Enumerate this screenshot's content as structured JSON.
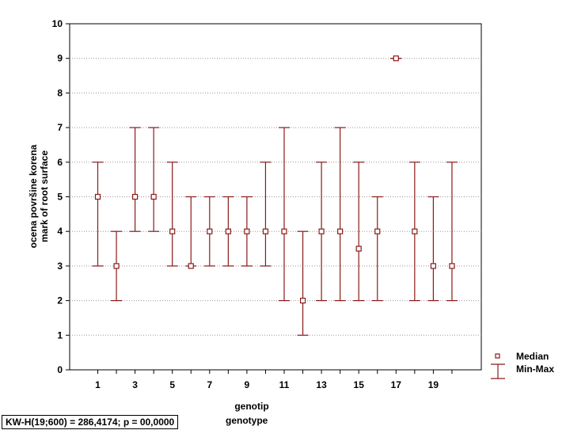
{
  "chart_data": {
    "type": "errorbar",
    "categories": [
      "1",
      "2",
      "3",
      "4",
      "5",
      "6",
      "7",
      "8",
      "9",
      "10",
      "11",
      "12",
      "13",
      "14",
      "15",
      "16",
      "17",
      "18",
      "19",
      "20"
    ],
    "x_tick_labels": [
      "1",
      "3",
      "5",
      "7",
      "9",
      "11",
      "13",
      "15",
      "17",
      "19"
    ],
    "median": [
      5,
      3,
      5,
      5,
      4,
      3,
      4,
      4,
      4,
      4,
      4,
      2,
      4,
      4,
      3.5,
      4,
      9,
      4,
      3,
      3
    ],
    "min": [
      3,
      2,
      4,
      4,
      3,
      3,
      3,
      3,
      3,
      3,
      2,
      1,
      2,
      2,
      2,
      2,
      9,
      2,
      2,
      2
    ],
    "max": [
      6,
      4,
      7,
      7,
      6,
      5,
      5,
      5,
      5,
      6,
      7,
      4,
      6,
      7,
      6,
      5,
      9,
      6,
      5,
      6
    ],
    "ylim": [
      0,
      10
    ],
    "y_ticks": [
      0,
      1,
      2,
      3,
      4,
      5,
      6,
      7,
      8,
      9,
      10
    ],
    "ylabel_line1": "ocena površine korena",
    "ylabel_line2": "mark of root surface",
    "xlabel_line1": "genotip",
    "xlabel_line2": "genotype",
    "legend": {
      "position": "right",
      "median_label": "Median",
      "minmax_label": "Min-Max"
    },
    "grid": true,
    "series_color": "#8b1a1a",
    "stats_text": "KW-H(19;600) = 286,4174; p = 00,0000"
  }
}
